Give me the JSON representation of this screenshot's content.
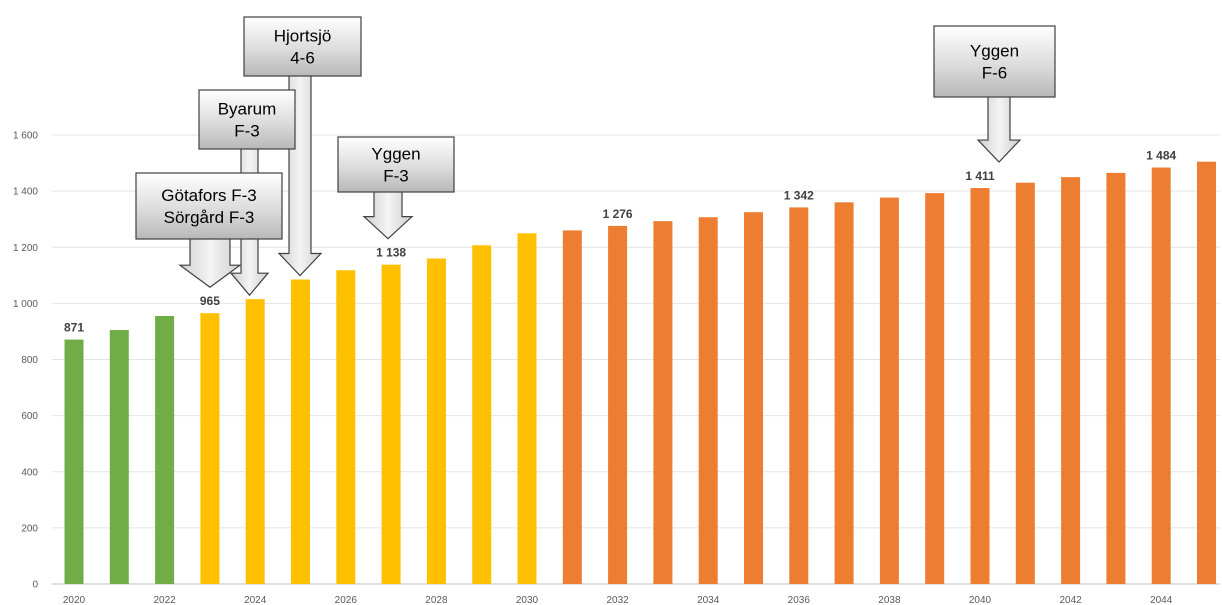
{
  "chart_data": {
    "type": "bar",
    "title": "",
    "xlabel": "",
    "ylabel": "",
    "ylim": [
      0,
      1600
    ],
    "yticks": [
      0,
      200,
      400,
      600,
      800,
      1000,
      1200,
      1400,
      1600
    ],
    "ytick_labels": [
      "0",
      "200",
      "400",
      "600",
      "800",
      "1 000",
      "1 200",
      "1 400",
      "1 600"
    ],
    "grid": true,
    "legend": "none",
    "categories": [
      2020,
      2021,
      2022,
      2023,
      2024,
      2025,
      2026,
      2027,
      2028,
      2029,
      2030,
      2031,
      2032,
      2033,
      2034,
      2035,
      2036,
      2037,
      2038,
      2039,
      2040,
      2041,
      2042,
      2043,
      2044,
      2045
    ],
    "xtick_labels": [
      "2020",
      "",
      "2022",
      "",
      "2024",
      "",
      "2026",
      "",
      "2028",
      "",
      "2030",
      "",
      "2032",
      "",
      "2034",
      "",
      "2036",
      "",
      "2038",
      "",
      "2040",
      "",
      "2042",
      "",
      "2044",
      ""
    ],
    "values": [
      871,
      905,
      955,
      965,
      1015,
      1085,
      1118,
      1138,
      1160,
      1207,
      1250,
      1260,
      1276,
      1293,
      1307,
      1325,
      1342,
      1360,
      1377,
      1393,
      1411,
      1430,
      1450,
      1465,
      1484,
      1505
    ],
    "colors": [
      "#70ad47",
      "#70ad47",
      "#70ad47",
      "#ffc000",
      "#ffc000",
      "#ffc000",
      "#ffc000",
      "#ffc000",
      "#ffc000",
      "#ffc000",
      "#ffc000",
      "#ed7d31",
      "#ed7d31",
      "#ed7d31",
      "#ed7d31",
      "#ed7d31",
      "#ed7d31",
      "#ed7d31",
      "#ed7d31",
      "#ed7d31",
      "#ed7d31",
      "#ed7d31",
      "#ed7d31",
      "#ed7d31",
      "#ed7d31",
      "#ed7d31"
    ],
    "data_labels": [
      {
        "category": 2020,
        "text": "871"
      },
      {
        "category": 2023,
        "text": "965"
      },
      {
        "category": 2027,
        "text": "1 138"
      },
      {
        "category": 2032,
        "text": "1 276"
      },
      {
        "category": 2036,
        "text": "1 342"
      },
      {
        "category": 2040,
        "text": "1 411"
      },
      {
        "category": 2044,
        "text": "1 484"
      }
    ],
    "annotations": [
      {
        "lines": [
          "Götafors F-3",
          "Sörgård F-3"
        ],
        "category": 2023
      },
      {
        "lines": [
          "Byarum",
          "F-3"
        ],
        "category": 2024
      },
      {
        "lines": [
          "Hjortsjö",
          "4-6"
        ],
        "category": 2025
      },
      {
        "lines": [
          "Yggen",
          "F-3"
        ],
        "category": 2027
      },
      {
        "lines": [
          "Yggen",
          "F-6"
        ],
        "category": 2040
      }
    ]
  }
}
